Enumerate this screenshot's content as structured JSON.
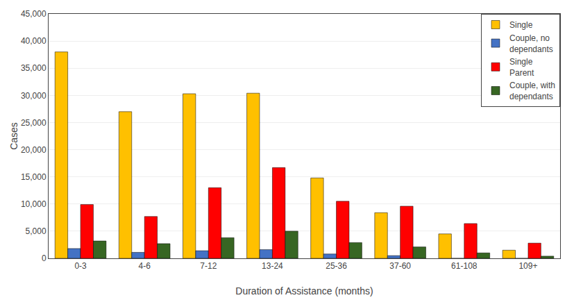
{
  "chart_data": {
    "type": "bar",
    "xlabel": "Duration of Assistance (months)",
    "ylabel": "Cases",
    "categories": [
      "0-3",
      "4-6",
      "7-12",
      "13-24",
      "25-36",
      "37-60",
      "61-108",
      "109+"
    ],
    "series": [
      {
        "name": "Single",
        "color": "#FFC000",
        "values": [
          38000,
          27000,
          30300,
          30400,
          14800,
          8400,
          4500,
          1500
        ]
      },
      {
        "name": "Couple, no\ndependants",
        "color": "#4472C4",
        "values": [
          1800,
          1100,
          1400,
          1600,
          800,
          500,
          0,
          0
        ]
      },
      {
        "name": "Single\nParent",
        "color": "#FF0000",
        "values": [
          9900,
          7700,
          13000,
          16700,
          10500,
          9600,
          6400,
          2800
        ]
      },
      {
        "name": "Couple, with\ndependants",
        "color": "#376623",
        "values": [
          3200,
          2700,
          3800,
          5000,
          2900,
          2100,
          1000,
          400
        ]
      }
    ],
    "ylim": [
      0,
      45000
    ],
    "yticks": [
      0,
      {
        "value": 5000,
        "label": "5,000"
      },
      {
        "value": 10000,
        "label": "10,000"
      },
      {
        "value": 15000,
        "label": "15,000"
      },
      {
        "value": 20000,
        "label": "20,000"
      },
      {
        "value": 25000,
        "label": "25,000"
      },
      {
        "value": 30000,
        "label": "30,000"
      },
      {
        "value": 35000,
        "label": "35,000"
      },
      {
        "value": 40000,
        "label": "40,000"
      },
      {
        "value": 45000,
        "label": "45,000"
      }
    ],
    "grid": true,
    "legend": "upper right"
  }
}
